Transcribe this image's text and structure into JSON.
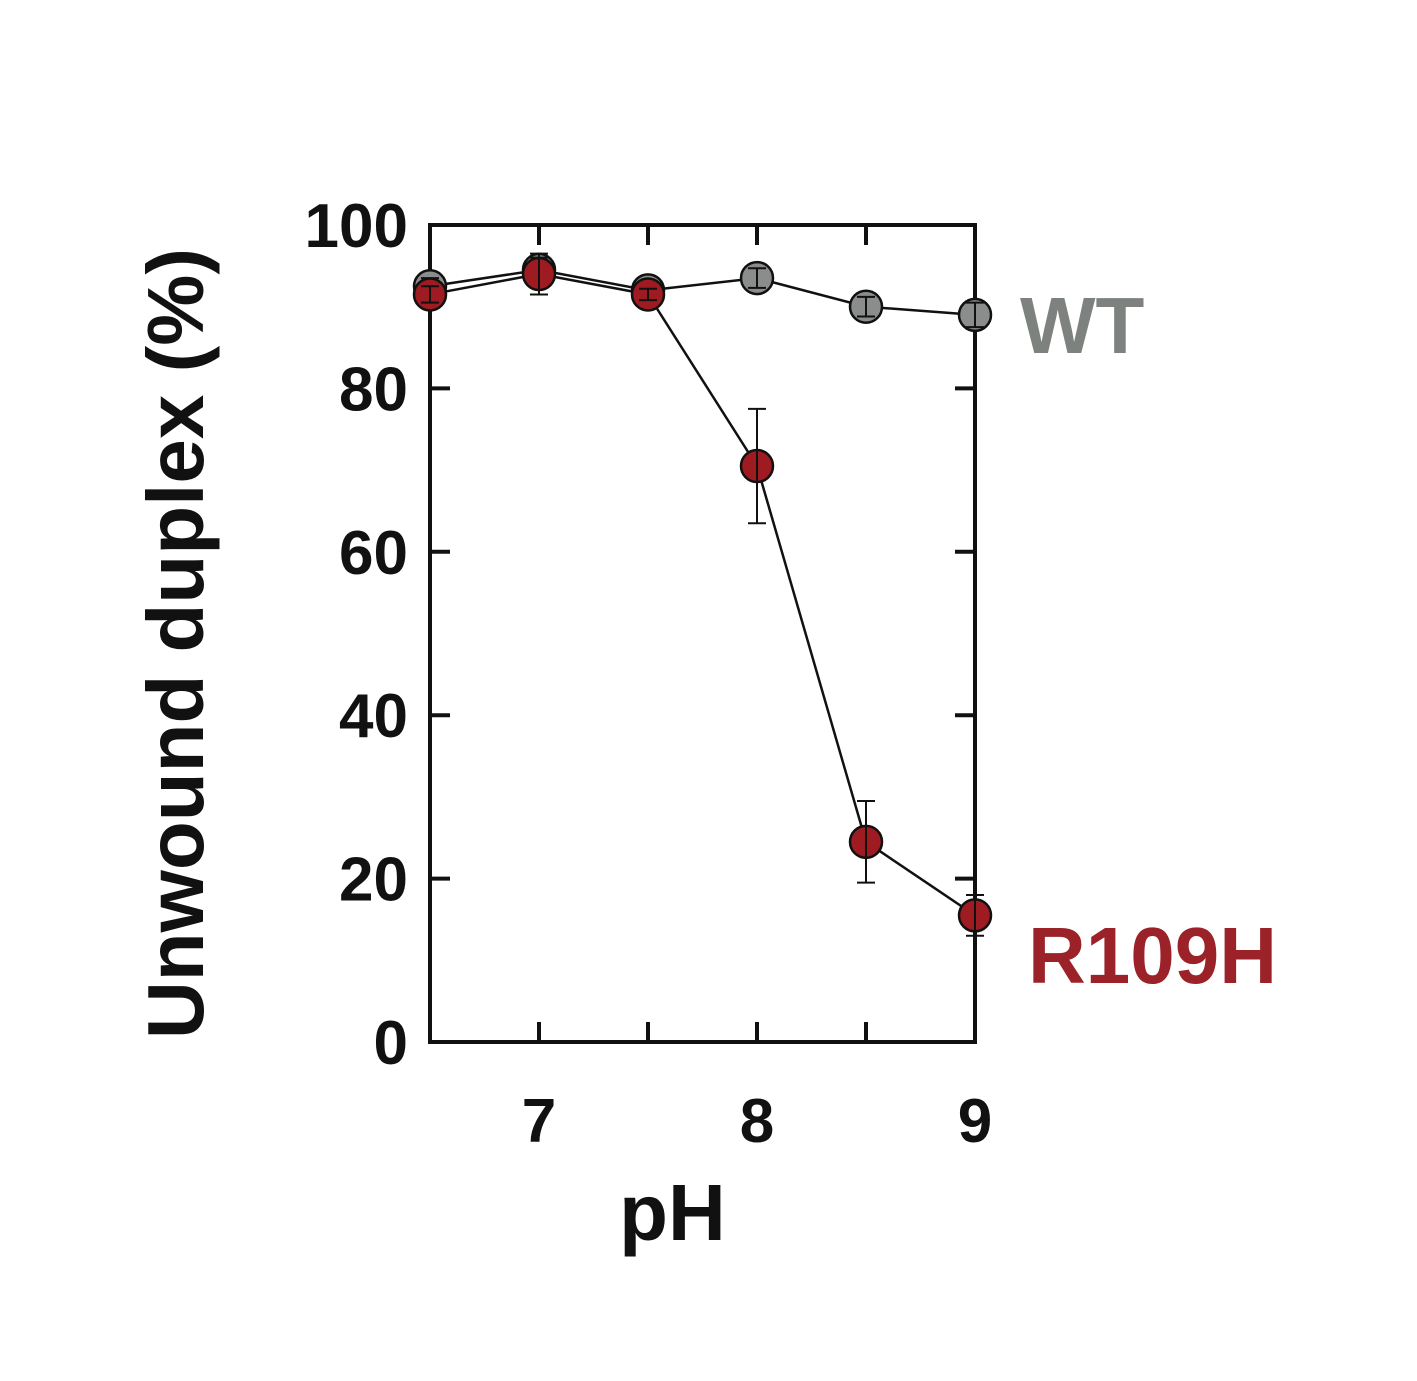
{
  "chart_data": {
    "type": "line",
    "title": "",
    "xlabel": "pH",
    "ylabel": "Unwound duplex (%)",
    "xlim": [
      6.5,
      9
    ],
    "ylim": [
      0,
      100
    ],
    "xticks": [
      7,
      8,
      9
    ],
    "xtick_marks": [
      7,
      7.5,
      8,
      8.5,
      9
    ],
    "yticks": [
      0,
      20,
      40,
      60,
      80,
      100
    ],
    "grid": false,
    "legend": "direct labels at right end of each series",
    "series": [
      {
        "name": "WT",
        "color": "#8a8d8c",
        "label_color": "#7e827f",
        "x": [
          6.5,
          7,
          7.5,
          8,
          8.5,
          9
        ],
        "y": [
          92.5,
          94.5,
          92,
          93.5,
          90,
          89
        ],
        "err": [
          1,
          1.5,
          0.8,
          1.2,
          1.2,
          1.5
        ]
      },
      {
        "name": "R109H",
        "color": "#9e1b22",
        "label_color": "#9a2228",
        "x": [
          6.5,
          7,
          7.5,
          8,
          8.5,
          9
        ],
        "y": [
          91.5,
          94,
          91.5,
          70.5,
          24.5,
          15.5
        ],
        "err": [
          1,
          2.5,
          0.7,
          7,
          5,
          2.5
        ]
      }
    ]
  }
}
